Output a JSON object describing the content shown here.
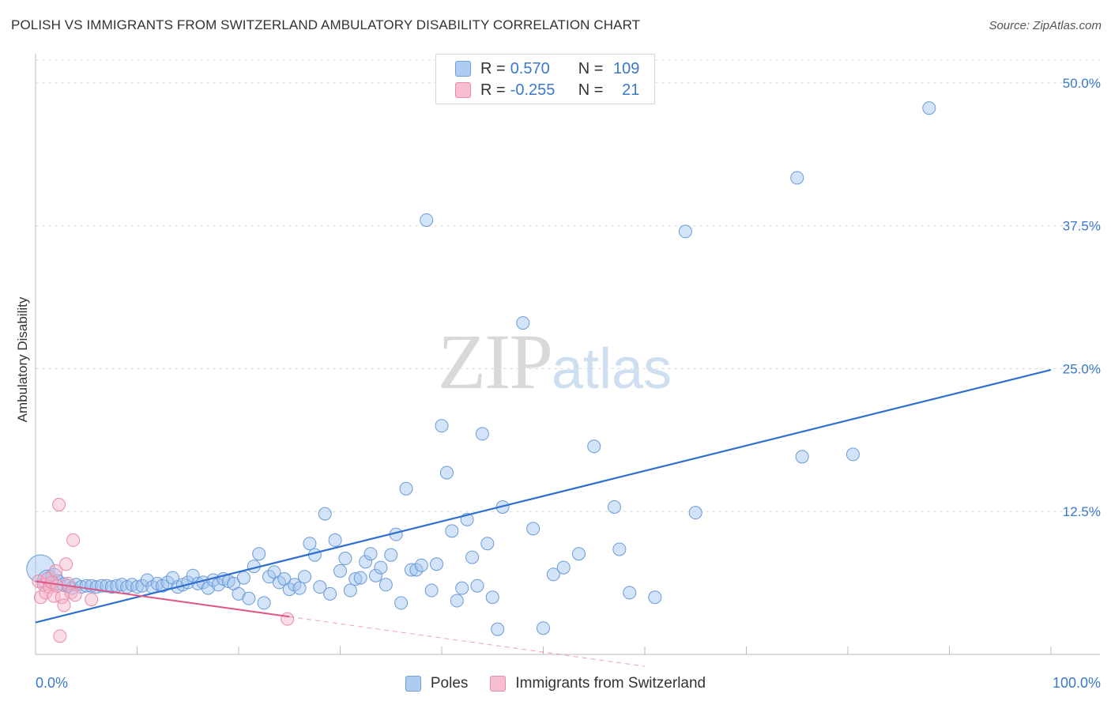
{
  "header": {
    "title": "POLISH VS IMMIGRANTS FROM SWITZERLAND AMBULATORY DISABILITY CORRELATION CHART",
    "source": "Source: ZipAtlas.com"
  },
  "watermark": {
    "zip": "ZIP",
    "atlas": "atlas"
  },
  "legend": {
    "r_label": "R =",
    "n_label": "N =",
    "rows": [
      {
        "name": "Poles",
        "r": "0.570",
        "n": "109",
        "fill": "#aecbf2",
        "stroke": "#6fa0de"
      },
      {
        "name": "Immigrants from Switzerland",
        "r": "-0.255",
        "n": "21",
        "fill": "#f7bdd0",
        "stroke": "#e98aa8"
      }
    ]
  },
  "colors": {
    "blue_point_fill": "rgba(160,196,240,0.45)",
    "blue_point_stroke": "#6a9ad8",
    "blue_line": "#2f6fce",
    "pink_point_fill": "rgba(247,180,202,0.45)",
    "pink_point_stroke": "#e98aa8",
    "pink_line": "#e05586",
    "axis_label": "#3a78c9",
    "grid": "#dcdcdc"
  },
  "chart_data": {
    "type": "scatter",
    "title": "POLISH VS IMMIGRANTS FROM SWITZERLAND AMBULATORY DISABILITY CORRELATION CHART",
    "xlabel": "",
    "ylabel": "Ambulatory Disability",
    "xlim": [
      0,
      100
    ],
    "ylim": [
      0,
      52
    ],
    "x_tick_labels": [
      {
        "value": 0,
        "label": "0.0%"
      },
      {
        "value": 100,
        "label": "100.0%"
      }
    ],
    "y_ticks": [
      {
        "value": 12.5,
        "label": "12.5%"
      },
      {
        "value": 25.0,
        "label": "25.0%"
      },
      {
        "value": 37.5,
        "label": "37.5%"
      },
      {
        "value": 50.0,
        "label": "50.0%"
      }
    ],
    "x_minor_ticks": [
      10,
      20,
      30,
      40,
      50,
      60,
      70,
      80,
      90,
      100
    ],
    "series": [
      {
        "name": "Poles",
        "r": 0.57,
        "n": 109,
        "trend": {
          "x": [
            0,
            100
          ],
          "y": [
            2.8,
            24.9
          ],
          "dashed_extension": false
        },
        "points": [
          [
            0.5,
            7.5,
            2.2
          ],
          [
            1.2,
            6.5,
            1.6
          ],
          [
            1.8,
            6.8,
            1.3
          ],
          [
            2.2,
            6.3,
            1.2
          ],
          [
            2.8,
            6.1,
            1.1
          ],
          [
            3.2,
            6.0,
            1.0
          ],
          [
            3.6,
            5.8,
            1.0
          ],
          [
            4.0,
            6.1,
            1.0
          ],
          [
            4.5,
            5.9,
            1.0
          ],
          [
            5.0,
            6.0,
            1.0
          ],
          [
            5.5,
            6.0,
            1.0
          ],
          [
            6.0,
            5.9,
            1.0
          ],
          [
            6.5,
            6.0,
            1.0
          ],
          [
            7.0,
            6.0,
            1.0
          ],
          [
            7.5,
            5.9,
            1.0
          ],
          [
            8.0,
            6.0,
            1.0
          ],
          [
            8.5,
            6.1,
            1.0
          ],
          [
            9.0,
            5.9,
            1.0
          ],
          [
            9.5,
            6.1,
            1.0
          ],
          [
            10.0,
            5.9,
            1.0
          ],
          [
            10.5,
            6.0,
            1.0
          ],
          [
            11.0,
            6.5,
            1.0
          ],
          [
            11.5,
            5.9,
            1.0
          ],
          [
            12.0,
            6.2,
            1.0
          ],
          [
            12.5,
            6.0,
            1.0
          ],
          [
            13.0,
            6.3,
            1.0
          ],
          [
            13.5,
            6.7,
            1.0
          ],
          [
            14.0,
            5.9,
            1.0
          ],
          [
            14.5,
            6.1,
            1.0
          ],
          [
            15.0,
            6.3,
            1.0
          ],
          [
            15.5,
            6.9,
            1.0
          ],
          [
            16.0,
            6.2,
            1.0
          ],
          [
            16.5,
            6.3,
            1.0
          ],
          [
            17.0,
            5.8,
            1.0
          ],
          [
            17.5,
            6.5,
            1.0
          ],
          [
            18.0,
            6.1,
            1.0
          ],
          [
            18.5,
            6.6,
            1.0
          ],
          [
            19.0,
            6.4,
            1.0
          ],
          [
            19.5,
            6.2,
            1.0
          ],
          [
            20.0,
            5.3,
            1.0
          ],
          [
            20.5,
            6.7,
            1.0
          ],
          [
            21.0,
            4.9,
            1.0
          ],
          [
            21.5,
            7.7,
            1.0
          ],
          [
            22.0,
            8.8,
            1.0
          ],
          [
            22.5,
            4.5,
            1.0
          ],
          [
            23.0,
            6.8,
            1.0
          ],
          [
            23.5,
            7.2,
            1.0
          ],
          [
            24.0,
            6.3,
            1.0
          ],
          [
            24.5,
            6.6,
            1.0
          ],
          [
            25.0,
            5.7,
            1.0
          ],
          [
            25.5,
            6.1,
            1.0
          ],
          [
            26.0,
            5.8,
            1.0
          ],
          [
            26.5,
            6.8,
            1.0
          ],
          [
            27.0,
            9.7,
            1.0
          ],
          [
            27.5,
            8.7,
            1.0
          ],
          [
            28.0,
            5.9,
            1.0
          ],
          [
            28.5,
            12.3,
            1.0
          ],
          [
            29.0,
            5.3,
            1.0
          ],
          [
            29.5,
            10.0,
            1.0
          ],
          [
            30.0,
            7.3,
            1.0
          ],
          [
            30.5,
            8.4,
            1.0
          ],
          [
            31.0,
            5.6,
            1.0
          ],
          [
            31.5,
            6.6,
            1.0
          ],
          [
            32.0,
            6.7,
            1.0
          ],
          [
            32.5,
            8.1,
            1.0
          ],
          [
            33.0,
            8.8,
            1.0
          ],
          [
            33.5,
            6.9,
            1.0
          ],
          [
            34.0,
            7.6,
            1.0
          ],
          [
            34.5,
            6.1,
            1.0
          ],
          [
            35.0,
            8.7,
            1.0
          ],
          [
            35.5,
            10.5,
            1.0
          ],
          [
            36.0,
            4.5,
            1.0
          ],
          [
            36.5,
            14.5,
            1.0
          ],
          [
            37.0,
            7.4,
            1.0
          ],
          [
            37.5,
            7.4,
            1.0
          ],
          [
            38.0,
            7.8,
            1.0
          ],
          [
            38.5,
            38.0,
            1.0
          ],
          [
            39.0,
            5.6,
            1.0
          ],
          [
            39.5,
            7.9,
            1.0
          ],
          [
            40.0,
            20.0,
            1.0
          ],
          [
            40.5,
            15.9,
            1.0
          ],
          [
            41.0,
            10.8,
            1.0
          ],
          [
            41.5,
            4.7,
            1.0
          ],
          [
            42.0,
            5.8,
            1.0
          ],
          [
            42.5,
            11.8,
            1.0
          ],
          [
            43.0,
            8.5,
            1.0
          ],
          [
            43.5,
            6.0,
            1.0
          ],
          [
            44.0,
            19.3,
            1.0
          ],
          [
            44.5,
            9.7,
            1.0
          ],
          [
            45.0,
            5.0,
            1.0
          ],
          [
            45.5,
            2.2,
            1.0
          ],
          [
            46.0,
            12.9,
            1.0
          ],
          [
            48.0,
            29.0,
            1.0
          ],
          [
            49.0,
            11.0,
            1.0
          ],
          [
            50.0,
            2.3,
            1.0
          ],
          [
            51.0,
            7.0,
            1.0
          ],
          [
            52.0,
            7.6,
            1.0
          ],
          [
            53.5,
            8.8,
            1.0
          ],
          [
            55.0,
            18.2,
            1.0
          ],
          [
            57.0,
            12.9,
            1.0
          ],
          [
            57.5,
            9.2,
            1.0
          ],
          [
            58.5,
            5.4,
            1.0
          ],
          [
            61.0,
            5.0,
            1.0
          ],
          [
            64.0,
            37.0,
            1.0
          ],
          [
            65.0,
            12.4,
            1.0
          ],
          [
            75.0,
            41.7,
            1.0
          ],
          [
            75.5,
            17.3,
            1.0
          ],
          [
            80.5,
            17.5,
            1.0
          ],
          [
            88.0,
            47.8,
            1.0
          ]
        ]
      },
      {
        "name": "Immigrants from Switzerland",
        "r": -0.255,
        "n": 21,
        "trend": {
          "x": [
            0,
            25
          ],
          "y": [
            6.4,
            3.3
          ],
          "dashed_to_x": 60
        },
        "points": [
          [
            0.3,
            6.4,
            1.0
          ],
          [
            0.5,
            5.0,
            1.0
          ],
          [
            0.8,
            6.1,
            1.0
          ],
          [
            1.0,
            5.4,
            1.0
          ],
          [
            1.2,
            6.6,
            1.0
          ],
          [
            1.4,
            5.9,
            1.0
          ],
          [
            1.6,
            6.3,
            1.0
          ],
          [
            1.8,
            5.1,
            1.0
          ],
          [
            2.0,
            7.3,
            1.0
          ],
          [
            2.1,
            6.0,
            1.0
          ],
          [
            2.3,
            13.1,
            1.0
          ],
          [
            2.4,
            1.6,
            1.0
          ],
          [
            2.6,
            5.0,
            1.0
          ],
          [
            2.8,
            4.3,
            1.0
          ],
          [
            3.0,
            7.9,
            1.0
          ],
          [
            3.2,
            6.2,
            1.0
          ],
          [
            3.5,
            5.4,
            1.0
          ],
          [
            3.7,
            10.0,
            1.0
          ],
          [
            3.9,
            5.2,
            1.0
          ],
          [
            5.5,
            4.8,
            1.0
          ],
          [
            24.8,
            3.1,
            1.0
          ]
        ]
      }
    ]
  }
}
